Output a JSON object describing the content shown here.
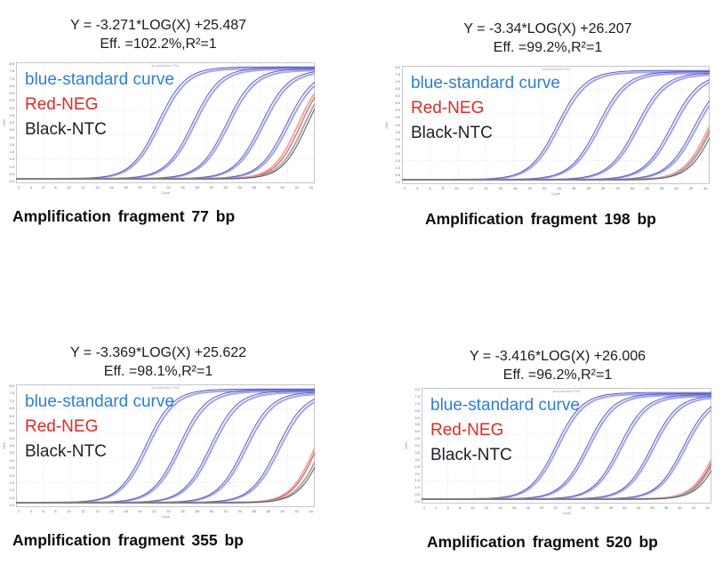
{
  "legend": [
    {
      "label": "blue-standard curve",
      "color": "#2e7fd2"
    },
    {
      "label": "Red-NEG",
      "color": "#e02a22"
    },
    {
      "label": "Black-NTC",
      "color": "#1f1f2a"
    }
  ],
  "axis": {
    "x_label": "Cycle",
    "y_label": "ΔRn",
    "plot_title": "Amplification Plot",
    "x_ticks": [
      2,
      4,
      6,
      8,
      10,
      12,
      14,
      16,
      18,
      20,
      22,
      24,
      26,
      28,
      30,
      32,
      34,
      36,
      38,
      40,
      42,
      44
    ],
    "y_ticks": [
      "8.0",
      "7.5",
      "7.0",
      "6.5",
      "6.0",
      "5.5",
      "5.0",
      "4.5",
      "4.0",
      "3.5",
      "3.0",
      "2.5",
      "2.0",
      "1.5",
      "1.0",
      "0.5",
      "0.0"
    ]
  },
  "styles": {
    "standard_halo": "#9a9ce4",
    "standard_core": "#5558c6",
    "neg_halo": "#efa49e",
    "neg_core": "#d2423b",
    "ntc_halo": "#a8a8aa",
    "ntc_core": "#55555c",
    "grid": "#dfdfe9",
    "plot_border": "#c6c6d0",
    "plot_bg": "#ffffff",
    "k_standard": 0.5,
    "k_late": 0.55
  },
  "chart_data": [
    {
      "type": "line",
      "fragment": "77 bp",
      "equation": "Y = -3.271*LOG(X) +25.487",
      "efficiency": "Eff. =102.2%,R²=1",
      "caption": "Amplification fragment 77 bp",
      "x_range": [
        1,
        45
      ],
      "y_range": [
        0,
        8
      ],
      "standard_curves": [
        {
          "ct": 21.9,
          "plateau": 0.99
        },
        {
          "ct": 27.0,
          "plateau": 0.985
        },
        {
          "ct": 32.0,
          "plateau": 0.975
        },
        {
          "ct": 37.1,
          "plateau": 0.965
        },
        {
          "ct": 40.8,
          "plateau": 0.96
        }
      ],
      "neg_curve": {
        "cts": [
          42.5,
          42.9
        ],
        "plateau": 0.95
      },
      "ntc_curve": {
        "cts": [
          43.4,
          43.8
        ],
        "plateau": 0.94
      }
    },
    {
      "type": "line",
      "fragment": "198 bp",
      "equation": "Y = -3.34*LOG(X) +26.207",
      "efficiency": "Eff. =99.2%,R²=1",
      "caption": "Amplification fragment 198 bp",
      "x_range": [
        1,
        45
      ],
      "y_range": [
        0,
        8
      ],
      "standard_curves": [
        {
          "ct": 23.2,
          "plateau": 0.99
        },
        {
          "ct": 29.0,
          "plateau": 0.98
        },
        {
          "ct": 34.5,
          "plateau": 0.97
        },
        {
          "ct": 39.5,
          "plateau": 0.965
        },
        {
          "ct": 42.8,
          "plateau": 0.96
        }
      ],
      "neg_curve": {
        "cts": [
          44.9,
          45.2
        ],
        "plateau": 0.95
      },
      "ntc_curve": {
        "cts": [
          45.3,
          45.7
        ],
        "plateau": 0.94
      }
    },
    {
      "type": "line",
      "fragment": "355 bp",
      "equation": "Y = -3.369*LOG(X) +25.622",
      "efficiency": "Eff. =98.1%,R²=1",
      "caption": "Amplification fragment 355 bp",
      "x_range": [
        1,
        45
      ],
      "y_range": [
        0,
        8
      ],
      "standard_curves": [
        {
          "ct": 20.1,
          "plateau": 0.99
        },
        {
          "ct": 25.0,
          "plateau": 0.985
        },
        {
          "ct": 29.6,
          "plateau": 0.975
        },
        {
          "ct": 34.6,
          "plateau": 0.965
        },
        {
          "ct": 39.5,
          "plateau": 0.96
        }
      ],
      "neg_curve": {
        "cts": [
          45.0,
          45.3
        ],
        "plateau": 0.95
      },
      "ntc_curve": {
        "cts": [
          45.9,
          46.3
        ],
        "plateau": 0.94
      }
    },
    {
      "type": "line",
      "fragment": "520 bp",
      "equation": "Y = -3.416*LOG(X) +26.006",
      "efficiency": "Eff. =96.2%,R²=1",
      "caption": "Amplification fragment 520 bp",
      "x_range": [
        1,
        45
      ],
      "y_range": [
        0,
        8
      ],
      "standard_curves": [
        {
          "ct": 21.4,
          "plateau": 0.99
        },
        {
          "ct": 26.1,
          "plateau": 0.98
        },
        {
          "ct": 31.0,
          "plateau": 0.97
        },
        {
          "ct": 35.9,
          "plateau": 0.965
        },
        {
          "ct": 40.7,
          "plateau": 0.96
        }
      ],
      "neg_curve": {
        "cts": [
          45.8,
          46.1
        ],
        "plateau": 0.95
      },
      "ntc_curve": {
        "cts": [
          46.3,
          46.7
        ],
        "plateau": 0.94
      }
    }
  ]
}
